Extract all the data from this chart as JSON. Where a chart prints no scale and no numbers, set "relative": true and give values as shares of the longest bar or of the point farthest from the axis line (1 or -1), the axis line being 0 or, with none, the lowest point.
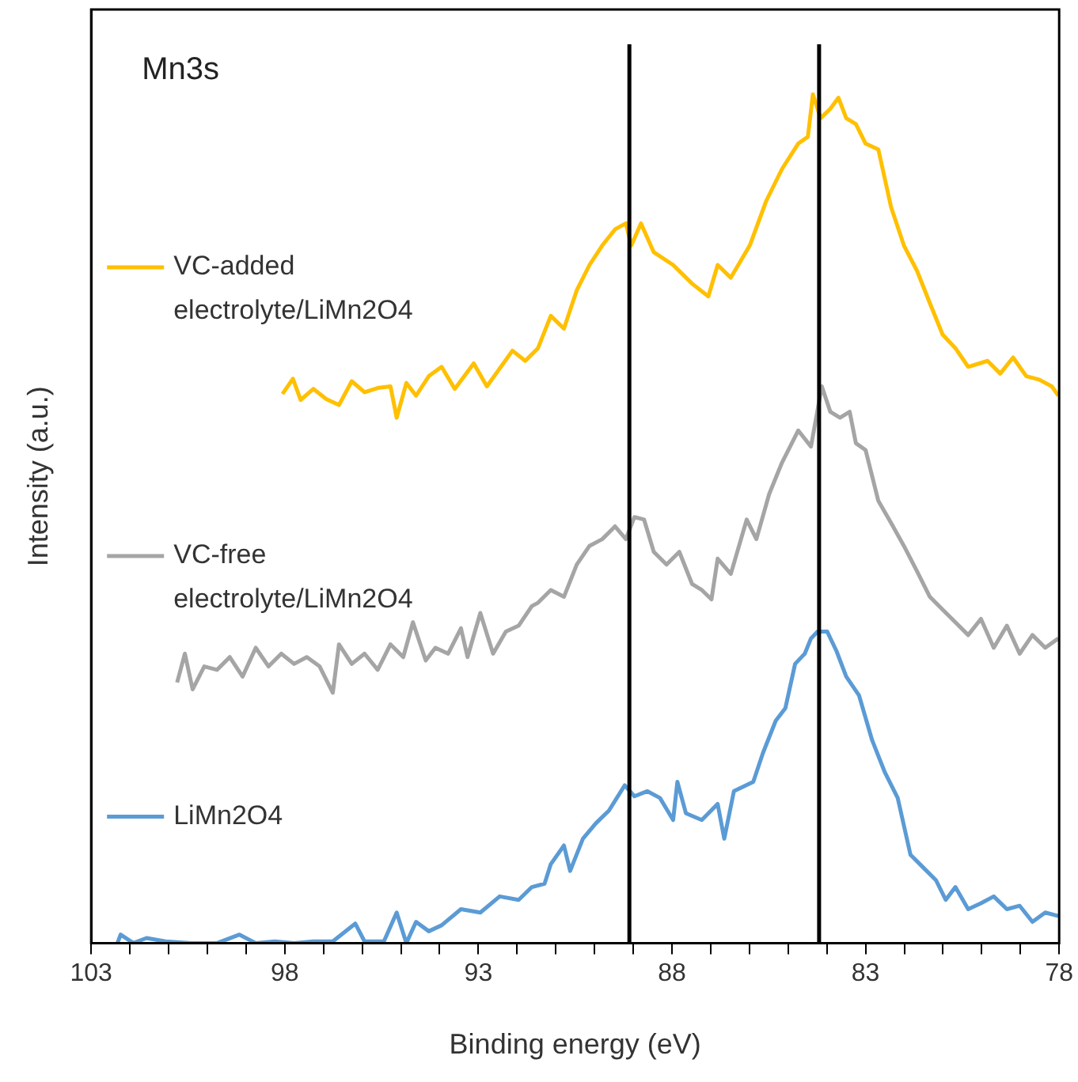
{
  "chart_data": {
    "type": "line",
    "title": "Mn3s",
    "xlabel": "Binding energy (eV)",
    "ylabel": "Intensity (a.u.)",
    "relative": true,
    "legend": "left",
    "grid": false,
    "marker": "none",
    "line_style": "solid",
    "xlim": [
      103,
      78
    ],
    "xticks": [
      103,
      {
        "value": 102,
        "label": null
      },
      {
        "value": 101,
        "label": null
      },
      {
        "value": 100,
        "label": null
      },
      {
        "value": 99,
        "label": null
      },
      98,
      {
        "value": 97,
        "label": null
      },
      {
        "value": 96,
        "label": null
      },
      {
        "value": 95,
        "label": null
      },
      {
        "value": 94,
        "label": null
      },
      93,
      {
        "value": 92,
        "label": null
      },
      {
        "value": 91,
        "label": null
      },
      {
        "value": 90,
        "label": null
      },
      {
        "value": 89,
        "label": null
      },
      88,
      {
        "value": 87,
        "label": null
      },
      {
        "value": 86,
        "label": null
      },
      {
        "value": 85,
        "label": null
      },
      {
        "value": 84,
        "label": null
      },
      83,
      {
        "value": 82,
        "label": null
      },
      {
        "value": 81,
        "label": null
      },
      {
        "value": 80,
        "label": null
      },
      {
        "value": 79,
        "label": null
      },
      78
    ],
    "ref_lines": [
      {
        "axis": "x",
        "value": 89.1,
        "color": "#000000"
      },
      {
        "axis": "x",
        "value": 84.2,
        "color": "#000000"
      }
    ],
    "series": [
      {
        "name": "VC-added electrolyte/LiMn2O4",
        "color": "#ffc000",
        "x": [
          98.06,
          97.79,
          97.59,
          97.26,
          96.93,
          96.6,
          96.27,
          95.94,
          95.6,
          95.27,
          95.11,
          94.86,
          94.61,
          94.28,
          93.95,
          93.61,
          93.12,
          92.78,
          92.12,
          91.79,
          91.46,
          91.13,
          90.79,
          90.46,
          90.13,
          89.8,
          89.47,
          89.19,
          89.05,
          88.8,
          88.47,
          87.97,
          87.48,
          87.06,
          86.82,
          86.48,
          85.99,
          85.57,
          85.16,
          84.74,
          84.49,
          84.36,
          84.16,
          83.91,
          83.7,
          83.5,
          83.25,
          83.0,
          82.67,
          82.34,
          82.01,
          81.67,
          81.34,
          81.01,
          80.68,
          80.35,
          79.85,
          79.52,
          79.19,
          78.85,
          78.52,
          78.19,
          78.02
        ],
        "values": [
          0.647,
          0.665,
          0.64,
          0.653,
          0.641,
          0.634,
          0.662,
          0.649,
          0.654,
          0.656,
          0.619,
          0.66,
          0.645,
          0.668,
          0.679,
          0.653,
          0.683,
          0.656,
          0.698,
          0.686,
          0.701,
          0.739,
          0.724,
          0.769,
          0.799,
          0.822,
          0.841,
          0.848,
          0.822,
          0.848,
          0.814,
          0.799,
          0.777,
          0.762,
          0.799,
          0.784,
          0.822,
          0.874,
          0.912,
          0.942,
          0.95,
          1,
          0.972,
          0.983,
          0.996,
          0.972,
          0.965,
          0.942,
          0.935,
          0.867,
          0.822,
          0.792,
          0.754,
          0.717,
          0.701,
          0.679,
          0.686,
          0.671,
          0.69,
          0.668,
          0.664,
          0.656,
          0.645
        ]
      },
      {
        "name": "VC-free electrolyte/LiMn2O4",
        "color": "#a5a5a5",
        "x": [
          100.78,
          100.58,
          100.38,
          100.08,
          99.75,
          99.42,
          99.09,
          98.75,
          98.42,
          98.09,
          97.76,
          97.43,
          97.1,
          96.76,
          96.6,
          96.27,
          95.94,
          95.6,
          95.27,
          94.94,
          94.69,
          94.36,
          94.11,
          93.78,
          93.45,
          93.28,
          92.95,
          92.62,
          92.29,
          91.96,
          91.62,
          91.46,
          91.13,
          90.79,
          90.46,
          90.13,
          89.8,
          89.47,
          89.19,
          88.97,
          88.72,
          88.47,
          88.14,
          87.81,
          87.48,
          87.23,
          86.98,
          86.82,
          86.48,
          86.07,
          85.82,
          85.49,
          85.16,
          84.74,
          84.41,
          84.13,
          83.91,
          83.66,
          83.41,
          83.25,
          83.0,
          82.67,
          82.34,
          82.01,
          81.67,
          81.34,
          81.01,
          80.68,
          80.35,
          80.02,
          79.69,
          79.35,
          79.02,
          78.69,
          78.36,
          78.02
        ],
        "values": [
          0.307,
          0.341,
          0.299,
          0.326,
          0.322,
          0.337,
          0.314,
          0.348,
          0.326,
          0.341,
          0.329,
          0.337,
          0.326,
          0.295,
          0.352,
          0.329,
          0.341,
          0.322,
          0.352,
          0.337,
          0.378,
          0.333,
          0.348,
          0.341,
          0.371,
          0.337,
          0.389,
          0.341,
          0.367,
          0.374,
          0.397,
          0.401,
          0.416,
          0.408,
          0.446,
          0.468,
          0.476,
          0.491,
          0.476,
          0.502,
          0.499,
          0.461,
          0.446,
          0.461,
          0.423,
          0.416,
          0.405,
          0.453,
          0.435,
          0.499,
          0.476,
          0.529,
          0.566,
          0.604,
          0.585,
          0.656,
          0.626,
          0.619,
          0.626,
          0.589,
          0.581,
          0.521,
          0.495,
          0.468,
          0.438,
          0.408,
          0.393,
          0.378,
          0.363,
          0.382,
          0.348,
          0.374,
          0.341,
          0.363,
          0.348,
          0.359
        ]
      },
      {
        "name": "LiMn2O4",
        "color": "#5b9bd5",
        "x": [
          102.32,
          102.24,
          101.91,
          101.57,
          101.08,
          100.41,
          99.75,
          99.17,
          98.75,
          98.26,
          97.76,
          97.26,
          96.76,
          96.18,
          95.94,
          95.44,
          95.11,
          94.86,
          94.61,
          94.28,
          93.95,
          93.45,
          92.95,
          92.45,
          91.96,
          91.62,
          91.29,
          91.13,
          90.79,
          90.63,
          90.3,
          89.97,
          89.63,
          89.22,
          88.97,
          88.64,
          88.31,
          87.97,
          87.86,
          87.64,
          87.23,
          86.82,
          86.65,
          86.4,
          85.9,
          85.65,
          85.32,
          85.07,
          84.82,
          84.57,
          84.41,
          84.24,
          83.99,
          83.75,
          83.5,
          83.17,
          82.83,
          82.5,
          82.17,
          81.84,
          81.51,
          81.18,
          80.93,
          80.68,
          80.35,
          80.02,
          79.69,
          79.35,
          79.02,
          78.69,
          78.36,
          78.02
        ],
        "values": [
          0,
          0.01,
          0,
          0.006,
          0.002,
          0,
          0,
          0.01,
          0,
          0.002,
          0,
          0.002,
          0.002,
          0.023,
          0.002,
          0.002,
          0.036,
          0,
          0.025,
          0.014,
          0.021,
          0.04,
          0.036,
          0.055,
          0.051,
          0.066,
          0.07,
          0.093,
          0.115,
          0.085,
          0.123,
          0.141,
          0.156,
          0.186,
          0.173,
          0.179,
          0.171,
          0.145,
          0.19,
          0.153,
          0.145,
          0.164,
          0.123,
          0.179,
          0.19,
          0.224,
          0.262,
          0.277,
          0.329,
          0.341,
          0.359,
          0.367,
          0.367,
          0.344,
          0.314,
          0.292,
          0.239,
          0.201,
          0.171,
          0.104,
          0.089,
          0.074,
          0.051,
          0.066,
          0.04,
          0.047,
          0.055,
          0.04,
          0.044,
          0.025,
          0.036,
          0.032
        ]
      }
    ]
  }
}
